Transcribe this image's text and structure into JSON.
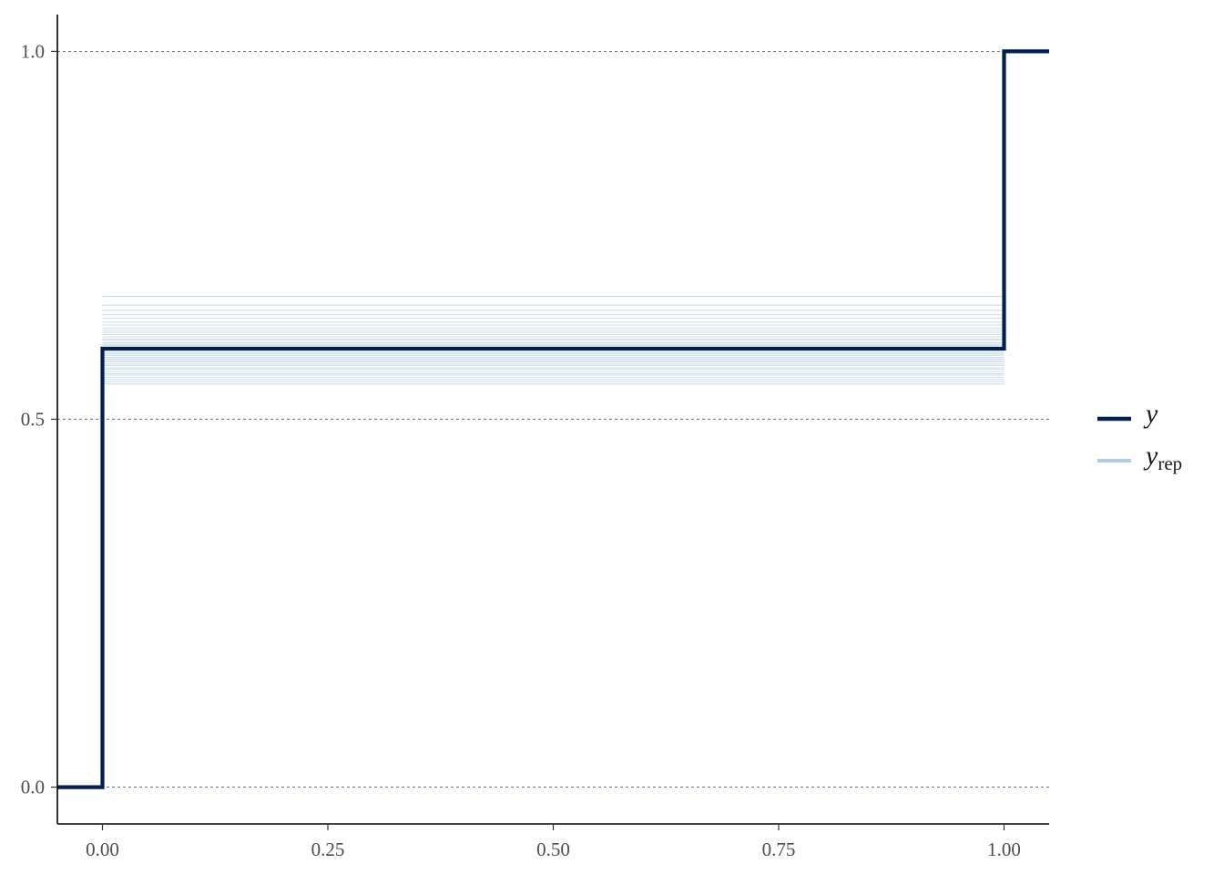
{
  "chart_data": {
    "type": "line",
    "step": true,
    "title": "",
    "xlabel": "",
    "ylabel": "",
    "xlim": [
      -0.05,
      1.05
    ],
    "ylim": [
      -0.05,
      1.05
    ],
    "x_ticks": [
      0,
      0.25,
      0.5,
      0.75,
      1
    ],
    "x_tick_labels": [
      "0.00",
      "0.25",
      "0.50",
      "0.75",
      "1.00"
    ],
    "y_ticks": [
      0,
      0.5,
      1
    ],
    "y_tick_labels": [
      "0.0",
      "0.5",
      "1.0"
    ],
    "grid": "horizontal dashed",
    "legend_position": "right",
    "series": [
      {
        "name": "y",
        "color": "#011f4b",
        "x": [
          -0.05,
          0,
          1,
          1.05
        ],
        "y": [
          0,
          0.596,
          1,
          1
        ]
      },
      {
        "name": "y_rep",
        "color": "#b3cde0",
        "x_range": [
          0,
          1
        ],
        "description_values": [
          0.548,
          0.551,
          0.554,
          0.557,
          0.56,
          0.562,
          0.565,
          0.568,
          0.57,
          0.573,
          0.575,
          0.578,
          0.58,
          0.582,
          0.584,
          0.587,
          0.589,
          0.591,
          0.593,
          0.595,
          0.597,
          0.6,
          0.602,
          0.604,
          0.607,
          0.609,
          0.612,
          0.615,
          0.618,
          0.621,
          0.624,
          0.628,
          0.632,
          0.637,
          0.642,
          0.648,
          0.655,
          0.667
        ]
      }
    ],
    "legend": [
      {
        "key": "y",
        "text": "y",
        "sub": ""
      },
      {
        "key": "y_rep",
        "text": "y",
        "sub": "rep"
      }
    ]
  }
}
